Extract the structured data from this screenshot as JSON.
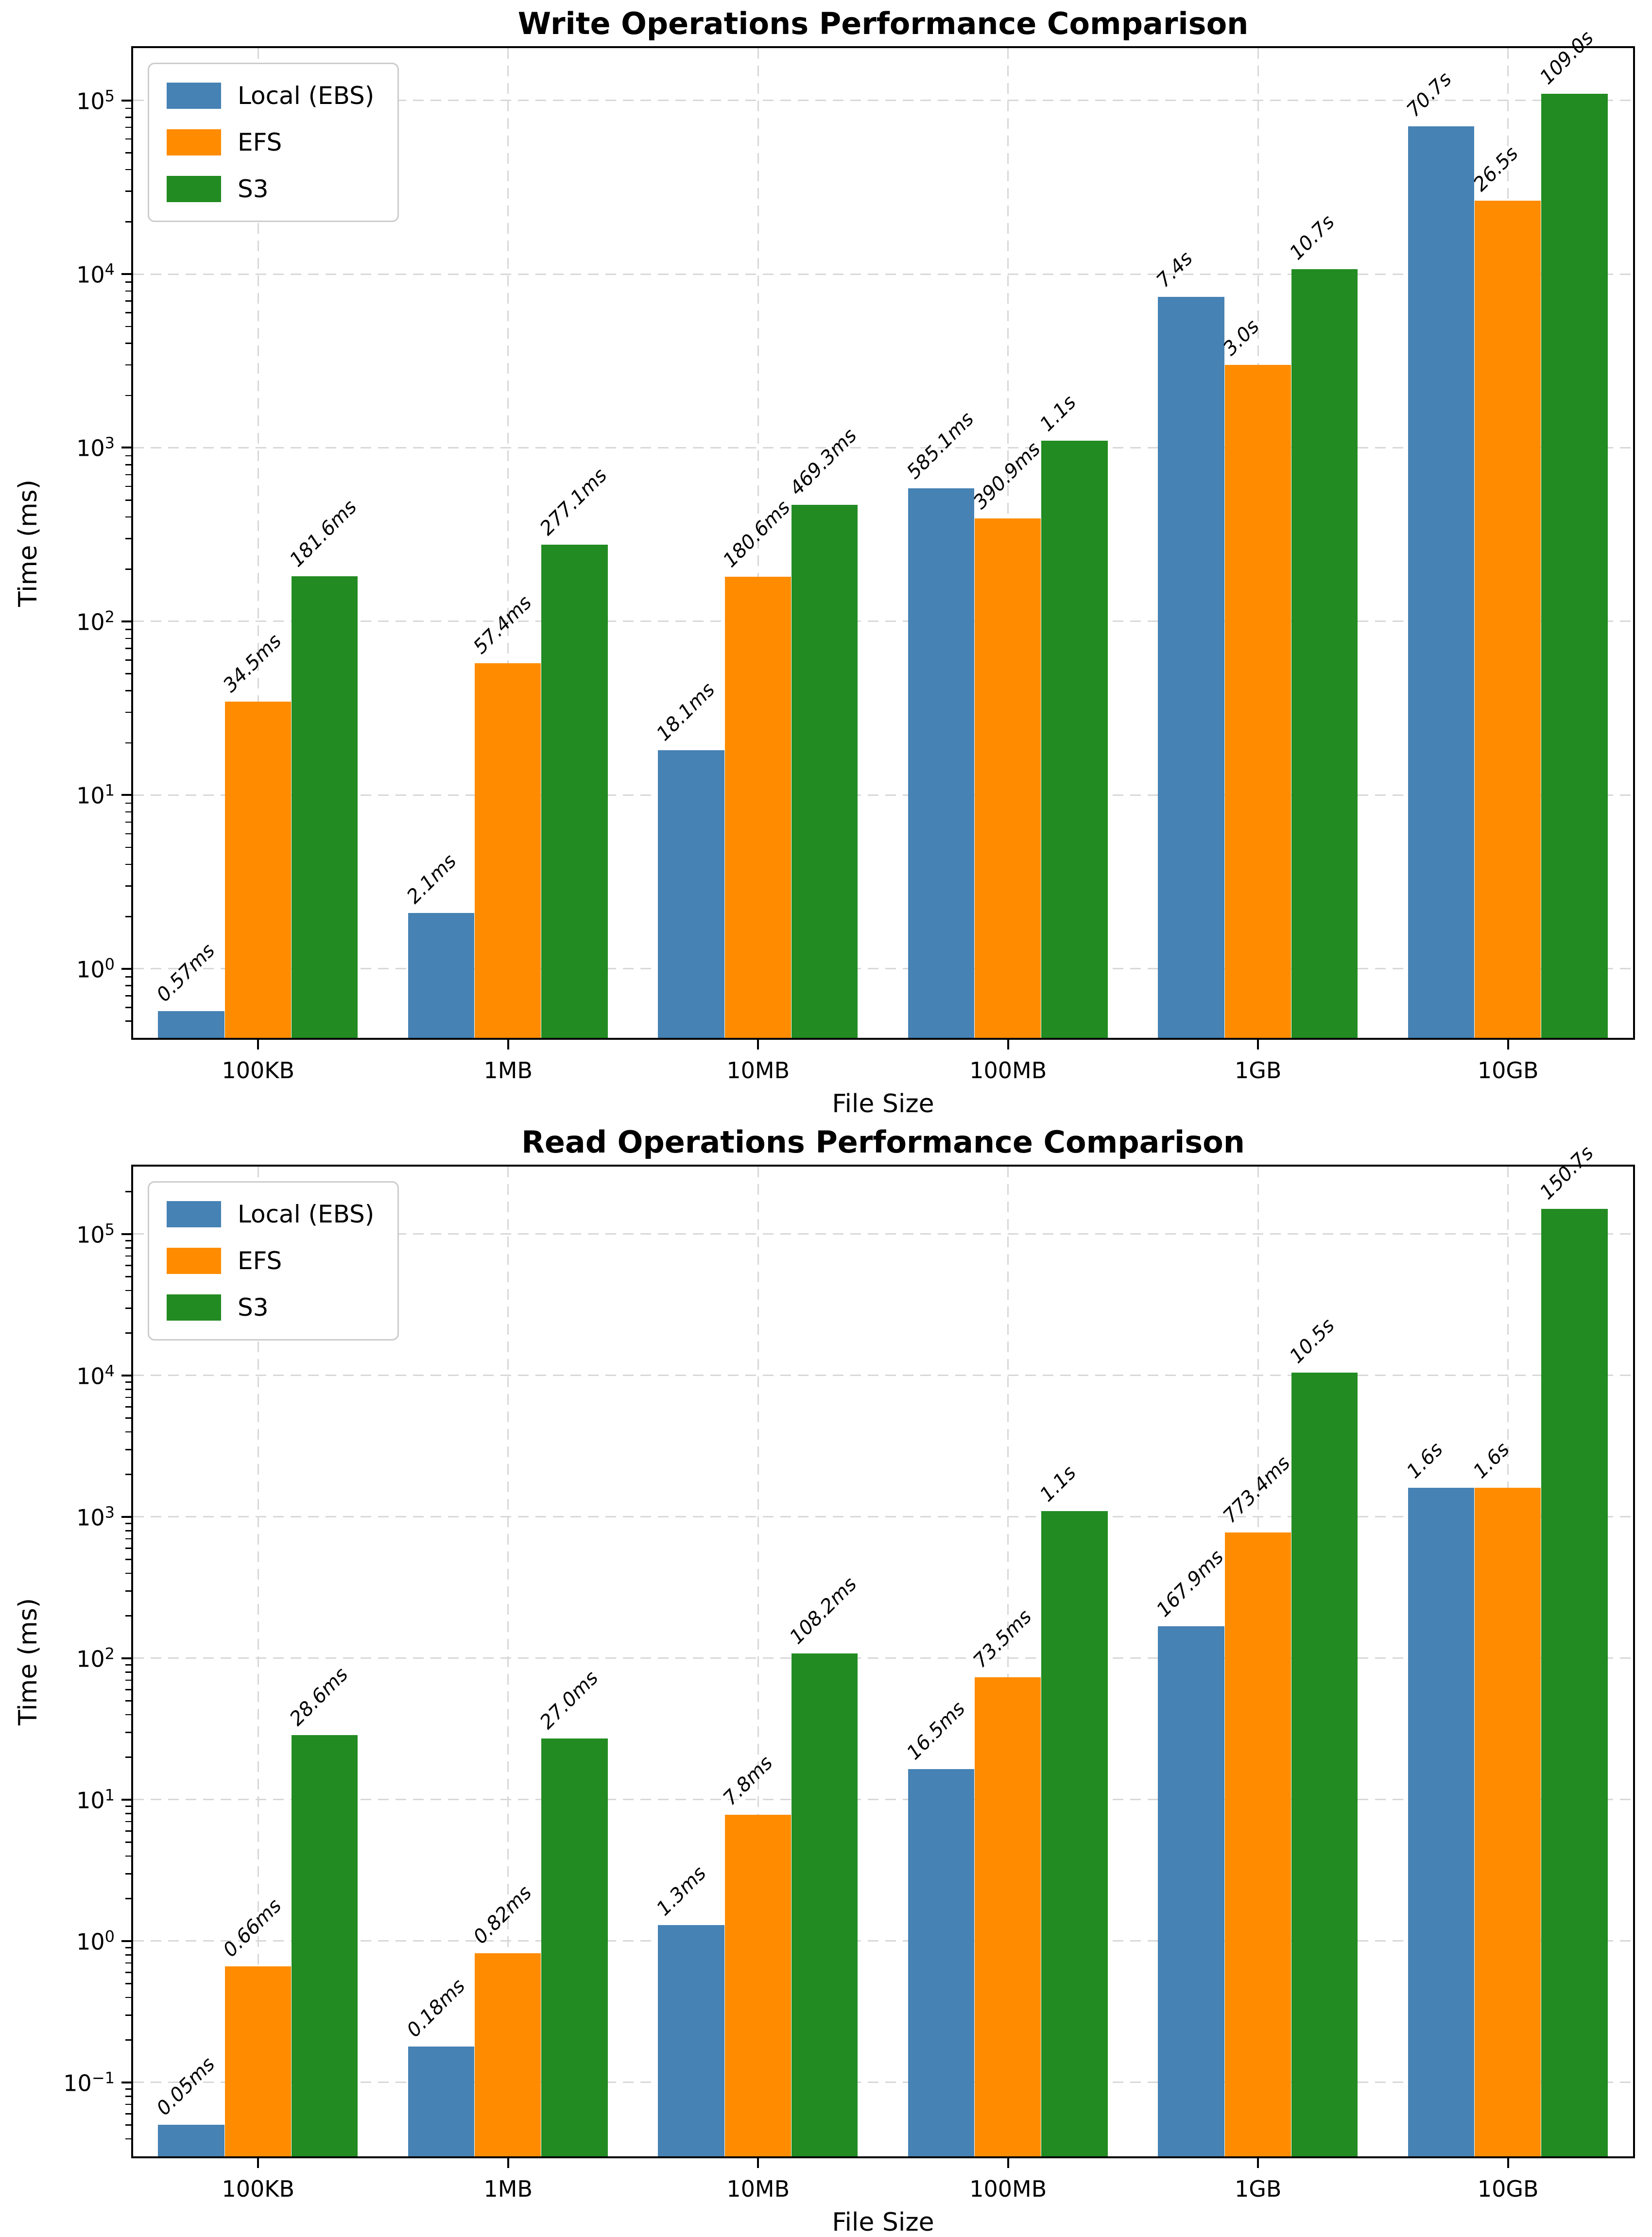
{
  "colors": {
    "local_ebs": "#4682B4",
    "efs": "#FF8C00",
    "s3": "#228B22",
    "grid": "#d8d8d8",
    "axis": "#000000"
  },
  "legend": {
    "items": [
      {
        "label": "Local (EBS)",
        "color": "#4682B4"
      },
      {
        "label": "EFS",
        "color": "#FF8C00"
      },
      {
        "label": "S3",
        "color": "#228B22"
      }
    ]
  },
  "chart_data": [
    {
      "type": "bar",
      "title": "Write Operations Performance Comparison",
      "xlabel": "File Size",
      "ylabel": "Time (ms)",
      "y_scale": "log",
      "grid": true,
      "legend_position": "upper-left",
      "ylim": [
        0.4,
        200000
      ],
      "ytick_exponents": [
        0,
        1,
        2,
        3,
        4,
        5
      ],
      "categories": [
        "100KB",
        "1MB",
        "10MB",
        "100MB",
        "1GB",
        "10GB"
      ],
      "series": [
        {
          "name": "Local (EBS)",
          "color": "#4682B4",
          "values": [
            0.57,
            2.1,
            18.1,
            585.1,
            7400,
            70700
          ],
          "labels": [
            "0.57ms",
            "2.1ms",
            "18.1ms",
            "585.1ms",
            "7.4s",
            "70.7s"
          ]
        },
        {
          "name": "EFS",
          "color": "#FF8C00",
          "values": [
            34.5,
            57.4,
            180.6,
            390.9,
            3000,
            26500
          ],
          "labels": [
            "34.5ms",
            "57.4ms",
            "180.6ms",
            "390.9ms",
            "3.0s",
            "26.5s"
          ]
        },
        {
          "name": "S3",
          "color": "#228B22",
          "values": [
            181.6,
            277.1,
            469.3,
            1100,
            10700,
            109000
          ],
          "labels": [
            "181.6ms",
            "277.1ms",
            "469.3ms",
            "1.1s",
            "10.7s",
            "109.0s"
          ]
        }
      ]
    },
    {
      "type": "bar",
      "title": "Read Operations Performance Comparison",
      "xlabel": "File Size",
      "ylabel": "Time (ms)",
      "y_scale": "log",
      "grid": true,
      "legend_position": "upper-left",
      "ylim": [
        0.03,
        300000
      ],
      "ytick_exponents": [
        -1,
        0,
        1,
        2,
        3,
        4,
        5
      ],
      "categories": [
        "100KB",
        "1MB",
        "10MB",
        "100MB",
        "1GB",
        "10GB"
      ],
      "series": [
        {
          "name": "Local (EBS)",
          "color": "#4682B4",
          "values": [
            0.05,
            0.18,
            1.3,
            16.5,
            167.9,
            1600
          ],
          "labels": [
            "0.05ms",
            "0.18ms",
            "1.3ms",
            "16.5ms",
            "167.9ms",
            "1.6s"
          ]
        },
        {
          "name": "EFS",
          "color": "#FF8C00",
          "values": [
            0.66,
            0.82,
            7.8,
            73.5,
            773.4,
            1600
          ],
          "labels": [
            "0.66ms",
            "0.82ms",
            "7.8ms",
            "73.5ms",
            "773.4ms",
            "1.6s"
          ]
        },
        {
          "name": "S3",
          "color": "#228B22",
          "values": [
            28.6,
            27.0,
            108.2,
            1100,
            10500,
            150700
          ],
          "labels": [
            "28.6ms",
            "27.0ms",
            "108.2ms",
            "1.1s",
            "10.5s",
            "150.7s"
          ]
        }
      ]
    }
  ]
}
